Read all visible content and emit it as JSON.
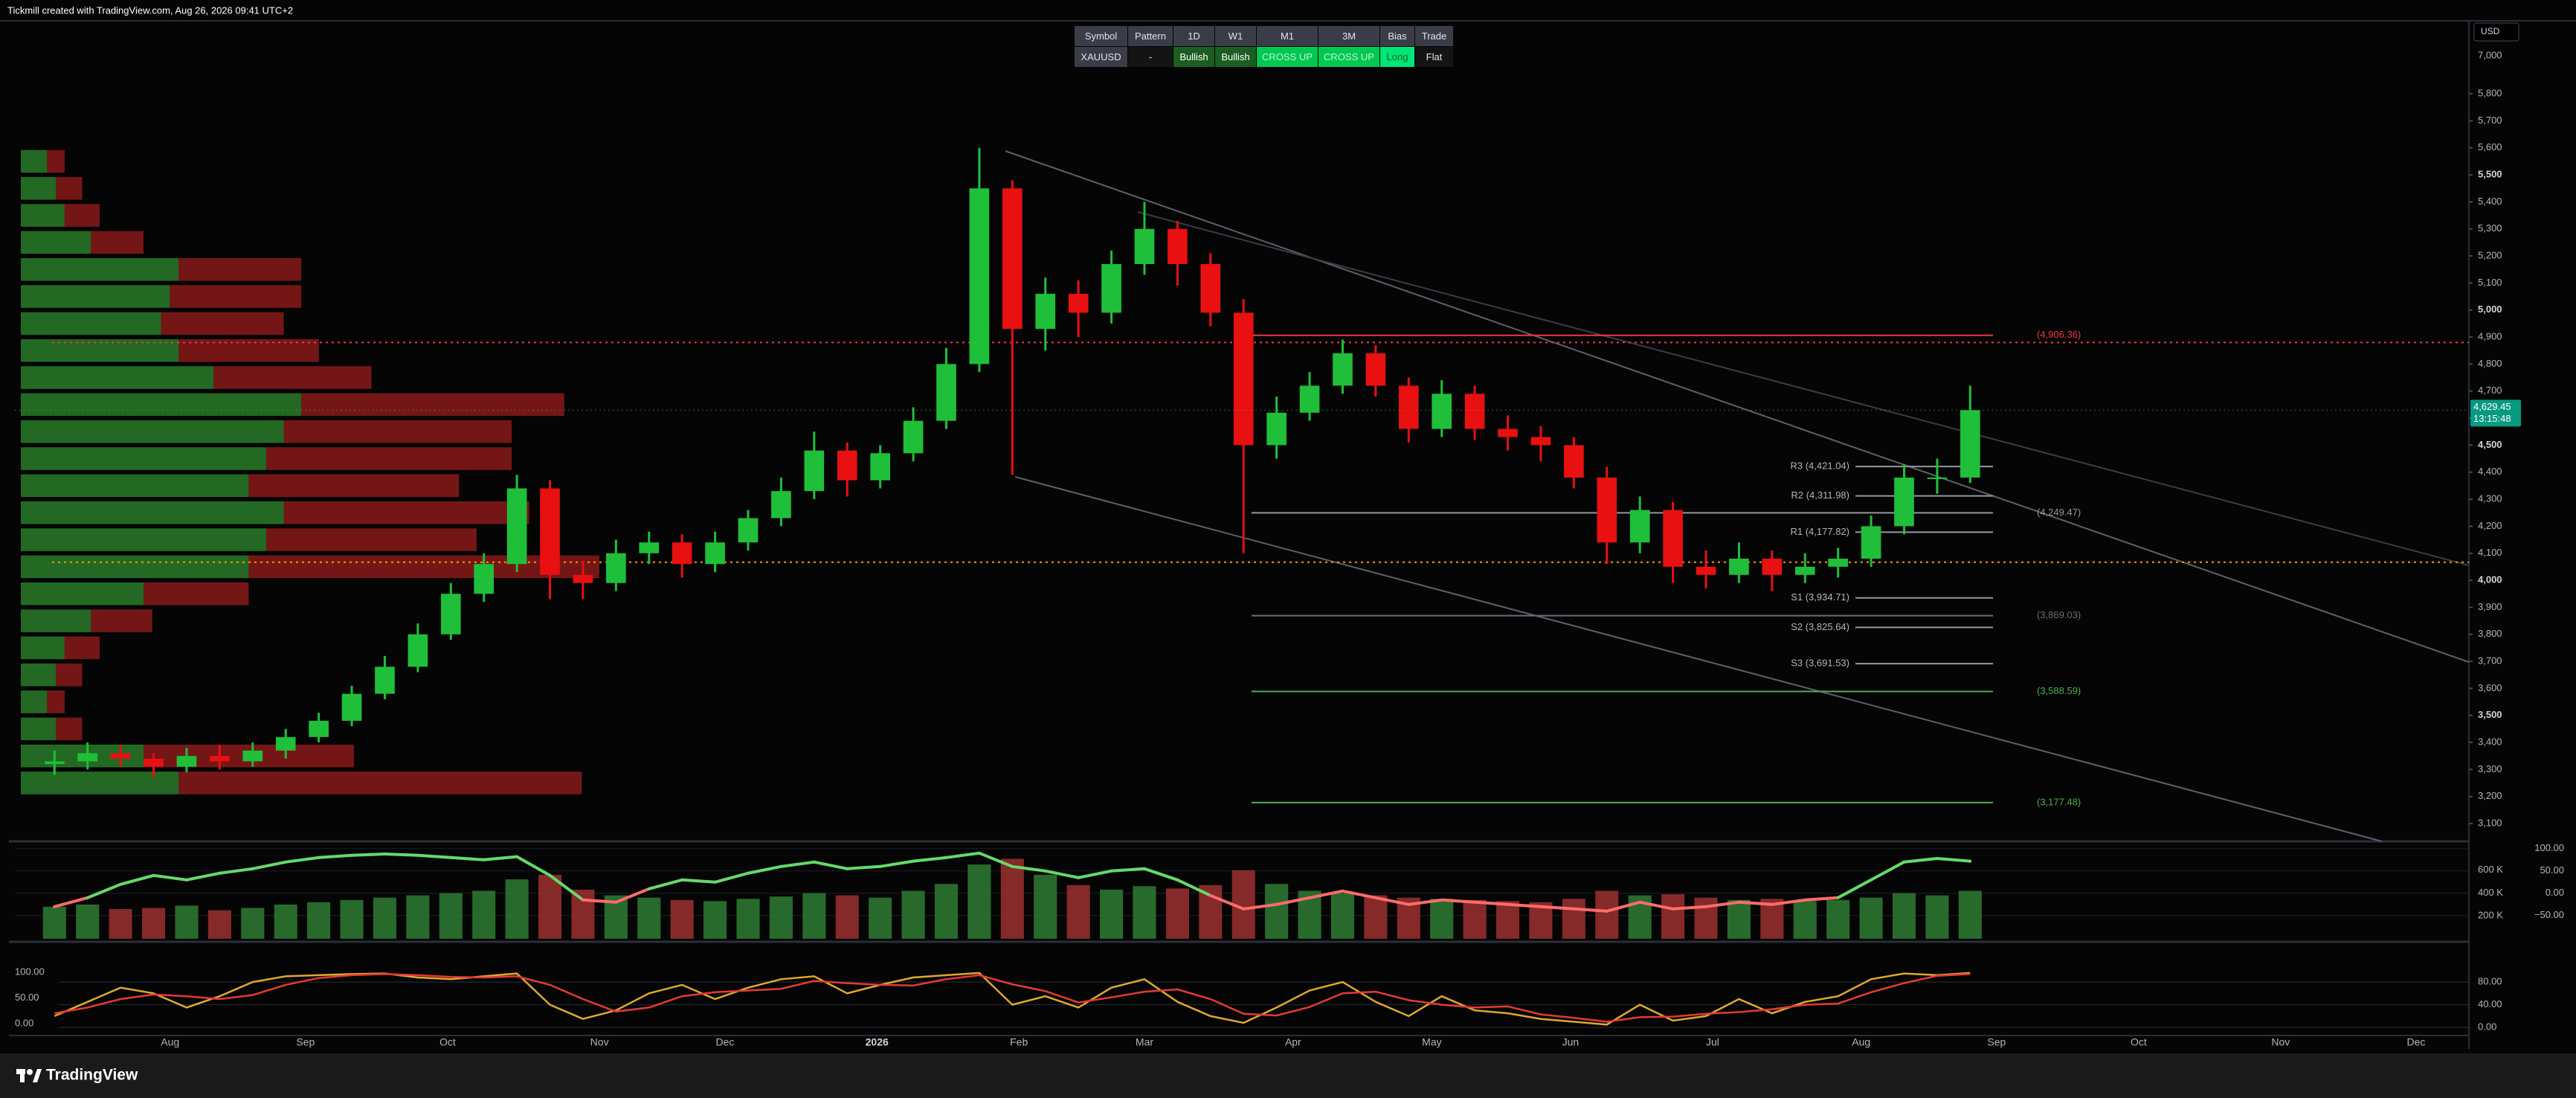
{
  "header_text": "Tickmill created with TradingView.com, Aug 26, 2026 09:41 UTC+2",
  "currency": "USD",
  "brand": "TradingView",
  "signal_table": {
    "header": [
      "Symbol",
      "Pattern",
      "1D",
      "W1",
      "M1",
      "3M",
      "Bias",
      "Trade"
    ],
    "row": [
      "XAUUSD",
      "-",
      "Bullish",
      "Bullish",
      "CROSS UP",
      "CROSS UP",
      "Long",
      "Flat"
    ]
  },
  "chart_data": [
    {
      "type": "candlestick",
      "up_color": "#1fbf3a",
      "down_color": "#e81010",
      "xlim": [
        -1.2,
        73.1
      ],
      "ylim": [
        3045,
        5880
      ],
      "scale_top_label": "7,000",
      "yticks": [
        {
          "value": 3100,
          "label": "3,100"
        },
        {
          "value": 3200,
          "label": "3,200"
        },
        {
          "value": 3300,
          "label": "3,300"
        },
        {
          "value": 3400,
          "label": "3,400"
        },
        {
          "value": 3500,
          "label": "3,500"
        },
        {
          "value": 3600,
          "label": "3,600"
        },
        {
          "value": 3700,
          "label": "3,700"
        },
        {
          "value": 3800,
          "label": "3,800"
        },
        {
          "value": 3900,
          "label": "3,900"
        },
        {
          "value": 4000,
          "label": "4,000"
        },
        {
          "value": 4100,
          "label": "4,100"
        },
        {
          "value": 4200,
          "label": "4,200"
        },
        {
          "value": 4300,
          "label": "4,300"
        },
        {
          "value": 4400,
          "label": "4,400"
        },
        {
          "value": 4500,
          "label": "4,500"
        },
        {
          "value": 4600,
          "label": "4,600"
        },
        {
          "value": 4700,
          "label": "4,700"
        },
        {
          "value": 4800,
          "label": "4,800"
        },
        {
          "value": 4900,
          "label": "4,900"
        },
        {
          "value": 5000,
          "label": "5,000"
        },
        {
          "value": 5100,
          "label": "5,100"
        },
        {
          "value": 5200,
          "label": "5,200"
        },
        {
          "value": 5300,
          "label": "5,300"
        },
        {
          "value": 5400,
          "label": "5,400"
        },
        {
          "value": 5500,
          "label": "5,500"
        },
        {
          "value": 5600,
          "label": "5,600"
        },
        {
          "value": 5700,
          "label": "5,700"
        },
        {
          "value": 5800,
          "label": "5,800"
        }
      ],
      "xticks": [
        {
          "value": 3.5,
          "label": "Aug"
        },
        {
          "value": 7.6,
          "label": "Sep"
        },
        {
          "value": 11.9,
          "label": "Oct"
        },
        {
          "value": 16.5,
          "label": "Nov"
        },
        {
          "value": 20.3,
          "label": "Dec"
        },
        {
          "value": 24.9,
          "label": "2026"
        },
        {
          "value": 29.2,
          "label": "Feb"
        },
        {
          "value": 33.0,
          "label": "Mar"
        },
        {
          "value": 37.5,
          "label": "Apr"
        },
        {
          "value": 41.7,
          "label": "May"
        },
        {
          "value": 45.9,
          "label": "Jun"
        },
        {
          "value": 50.2,
          "label": "Jul"
        },
        {
          "value": 54.7,
          "label": "Aug"
        },
        {
          "value": 58.8,
          "label": "Sep"
        },
        {
          "value": 63.1,
          "label": "Oct"
        },
        {
          "value": 67.4,
          "label": "Nov"
        },
        {
          "value": 71.5,
          "label": "Dec"
        }
      ],
      "open": [
        3320,
        3330,
        3360,
        3340,
        3310,
        3350,
        3330,
        3370,
        3420,
        3480,
        3580,
        3680,
        3800,
        3950,
        4060,
        4340,
        4020,
        3990,
        4100,
        4140,
        4060,
        4140,
        4230,
        4330,
        4480,
        4370,
        4470,
        4590,
        4800,
        5450,
        4930,
        5060,
        4990,
        5170,
        5300,
        5170,
        4990,
        4500,
        4620,
        4720,
        4840,
        4720,
        4560,
        4690,
        4560,
        4530,
        4500,
        4380,
        4140,
        4260,
        4050,
        4020,
        4080,
        4020,
        4050,
        4080,
        4200,
        4380,
        4380
      ],
      "high": [
        3370,
        3400,
        3390,
        3360,
        3380,
        3390,
        3400,
        3450,
        3510,
        3610,
        3720,
        3840,
        3990,
        4100,
        4390,
        4370,
        4070,
        4150,
        4180,
        4170,
        4180,
        4260,
        4380,
        4550,
        4510,
        4500,
        4640,
        4860,
        5600,
        5480,
        5120,
        5110,
        5220,
        5400,
        5330,
        5210,
        5040,
        4680,
        4770,
        4890,
        4870,
        4750,
        4740,
        4720,
        4610,
        4570,
        4530,
        4420,
        4310,
        4290,
        4110,
        4140,
        4110,
        4100,
        4120,
        4240,
        4430,
        4450,
        4720
      ],
      "low": [
        3280,
        3300,
        3310,
        3270,
        3290,
        3300,
        3310,
        3340,
        3400,
        3460,
        3560,
        3660,
        3780,
        3920,
        4030,
        3930,
        3930,
        3960,
        4060,
        4010,
        4030,
        4110,
        4200,
        4300,
        4310,
        4340,
        4440,
        4560,
        4770,
        4390,
        4850,
        4900,
        4950,
        5130,
        5090,
        4940,
        4100,
        4450,
        4590,
        4690,
        4680,
        4510,
        4530,
        4520,
        4480,
        4440,
        4340,
        4060,
        4100,
        3990,
        3970,
        3990,
        3960,
        3990,
        4010,
        4050,
        4170,
        4320,
        4360
      ],
      "close": [
        3330,
        3360,
        3340,
        3310,
        3350,
        3330,
        3370,
        3420,
        3480,
        3580,
        3680,
        3800,
        3950,
        4060,
        4340,
        4020,
        3990,
        4100,
        4140,
        4060,
        4140,
        4230,
        4330,
        4480,
        4370,
        4470,
        4590,
        4800,
        5450,
        4930,
        5060,
        4990,
        5170,
        5300,
        5170,
        4990,
        4500,
        4620,
        4720,
        4840,
        4720,
        4560,
        4690,
        4560,
        4530,
        4500,
        4380,
        4140,
        4260,
        4050,
        4020,
        4080,
        4020,
        4050,
        4080,
        4200,
        4380,
        4380,
        4629.45
      ],
      "last_price": {
        "value": 4629.45,
        "label": "4,629.45"
      },
      "countdown": "13:15:48",
      "volume_profile": {
        "xlim": [
          0,
          1400
        ],
        "up_color": "#2e8b2e",
        "down_color": "#9b1c1c",
        "levels": [
          3250,
          3350,
          3450,
          3550,
          3650,
          3750,
          3850,
          3950,
          4050,
          4150,
          4250,
          4350,
          4450,
          4550,
          4650,
          4750,
          4850,
          4950,
          5050,
          5150,
          5250,
          5350,
          5450,
          5550
        ],
        "up": [
          90,
          70,
          20,
          15,
          20,
          25,
          40,
          70,
          130,
          140,
          150,
          130,
          140,
          150,
          160,
          110,
          90,
          80,
          85,
          90,
          40,
          25,
          20,
          15
        ],
        "down": [
          230,
          120,
          15,
          10,
          15,
          20,
          35,
          60,
          200,
          120,
          140,
          120,
          140,
          130,
          150,
          90,
          80,
          70,
          75,
          70,
          30,
          20,
          15,
          10
        ]
      },
      "dotted_levels": [
        {
          "value": 4880,
          "color": "#f23645"
        },
        {
          "value": 4067,
          "color": "#ff9800"
        }
      ],
      "levels": [
        {
          "value": 4906.36,
          "label": "(4,906.36)",
          "color": "#f23645"
        },
        {
          "value": 4249.47,
          "label": "(4,249.47)",
          "color": "#9598a1"
        },
        {
          "value": 3869.03,
          "label": "(3,869.03)",
          "color": "#6a6d78"
        },
        {
          "value": 3588.59,
          "label": "(3,588.59)",
          "color": "#4caf50"
        },
        {
          "value": 3177.48,
          "label": "(3,177.48)",
          "color": "#4caf50"
        }
      ],
      "pivots": [
        {
          "value": 4421.04,
          "label": "R3 (4,421.04)"
        },
        {
          "value": 4311.98,
          "label": "R2 (4,311.98)"
        },
        {
          "value": 4177.82,
          "label": "R1 (4,177.82)"
        },
        {
          "value": 3934.71,
          "label": "S1 (3,934.71)"
        },
        {
          "value": 3825.64,
          "label": "S2 (3,825.64)"
        },
        {
          "value": 3691.53,
          "label": "S3 (3,691.53)"
        }
      ]
    },
    {
      "type": "bar",
      "xlim": [
        -1.2,
        73.1
      ],
      "ylim": [
        0,
        820000
      ],
      "yticks": [
        {
          "value": 600000,
          "label": "600 K"
        },
        {
          "value": 400000,
          "label": "400 K"
        },
        {
          "value": 200000,
          "label": "200 K"
        }
      ],
      "y2lim": [
        -102,
        108
      ],
      "y2ticks": [
        {
          "value": 100,
          "label": "100.00"
        },
        {
          "value": 50,
          "label": "50.00"
        },
        {
          "value": 0,
          "label": "0.00"
        },
        {
          "value": -50,
          "label": "−50.00"
        }
      ],
      "series": [
        {
          "type": "bar",
          "up_color": "#2f7d32",
          "down_color": "#9c3030",
          "values": [
            280000,
            300000,
            260000,
            270000,
            290000,
            250000,
            270000,
            300000,
            320000,
            340000,
            360000,
            380000,
            400000,
            420000,
            520000,
            560000,
            430000,
            380000,
            360000,
            340000,
            330000,
            350000,
            370000,
            400000,
            380000,
            360000,
            420000,
            480000,
            650000,
            700000,
            560000,
            470000,
            430000,
            460000,
            440000,
            470000,
            600000,
            480000,
            420000,
            400000,
            380000,
            360000,
            350000,
            340000,
            330000,
            320000,
            350000,
            420000,
            380000,
            390000,
            360000,
            340000,
            350000,
            330000,
            340000,
            360000,
            400000,
            380000,
            420000
          ]
        },
        {
          "type": "line",
          "axis": "y2",
          "up_color": "#66d96a",
          "down_color": "#ff6b6b",
          "values": [
            -30,
            -10,
            20,
            40,
            30,
            45,
            55,
            70,
            80,
            85,
            88,
            85,
            80,
            75,
            82,
            40,
            -15,
            -20,
            10,
            30,
            25,
            45,
            60,
            70,
            55,
            60,
            72,
            80,
            90,
            60,
            50,
            35,
            50,
            55,
            30,
            -5,
            -35,
            -25,
            -10,
            5,
            -10,
            -25,
            -15,
            -20,
            -25,
            -30,
            -35,
            -40,
            -20,
            -35,
            -30,
            -20,
            -25,
            -15,
            -10,
            30,
            70,
            78,
            72
          ]
        }
      ]
    },
    {
      "type": "line",
      "xlim": [
        -1.2,
        73.1
      ],
      "ylim": [
        -17,
        151
      ],
      "yticks": [
        {
          "value": 100,
          "label": "100.00"
        },
        {
          "value": 50,
          "label": "50.00"
        },
        {
          "value": 0,
          "label": "0.00"
        }
      ],
      "y2lim": [
        -9,
        143
      ],
      "y2ticks": [
        {
          "value": 80,
          "label": "80.00"
        },
        {
          "value": 40,
          "label": "40.00"
        },
        {
          "value": 0,
          "label": "0.00"
        }
      ],
      "series": [
        {
          "axis": "y2",
          "color": "#e0a82e",
          "values": [
            20,
            45,
            70,
            60,
            35,
            55,
            80,
            90,
            92,
            94,
            95,
            88,
            85,
            90,
            95,
            40,
            15,
            30,
            60,
            75,
            50,
            70,
            85,
            90,
            60,
            75,
            88,
            92,
            96,
            40,
            55,
            35,
            70,
            85,
            45,
            20,
            8,
            35,
            65,
            80,
            45,
            20,
            55,
            30,
            25,
            15,
            10,
            5,
            40,
            12,
            20,
            50,
            25,
            45,
            55,
            85,
            95,
            92,
            96
          ]
        },
        {
          "axis": "y2",
          "color": "#e53935",
          "values": [
            25,
            35,
            50,
            58,
            55,
            50,
            57,
            75,
            87,
            92,
            94,
            92,
            89,
            88,
            90,
            75,
            50,
            28,
            35,
            55,
            62,
            65,
            68,
            82,
            78,
            75,
            74,
            85,
            92,
            76,
            64,
            44,
            53,
            63,
            67,
            50,
            24,
            21,
            36,
            60,
            63,
            48,
            40,
            35,
            37,
            23,
            17,
            10,
            18,
            19,
            24,
            27,
            32,
            40,
            42,
            62,
            78,
            91,
            94
          ]
        }
      ]
    }
  ]
}
